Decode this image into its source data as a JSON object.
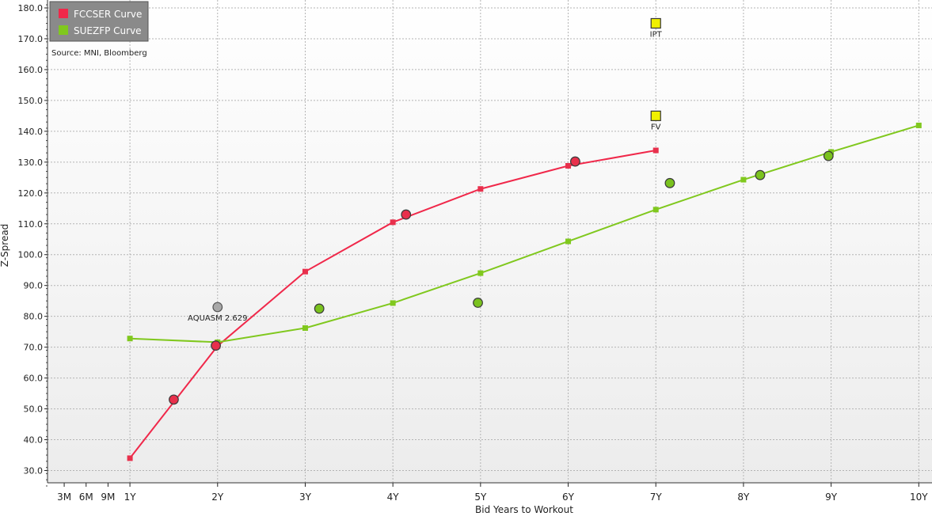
{
  "chart_data": {
    "type": "line",
    "title": "",
    "xlabel": "Bid Years to Workout",
    "ylabel": "Z-Spread",
    "source": "Source: MNI, Bloomberg",
    "grid": true,
    "legend_position": "top-left",
    "xlim": [
      0,
      10
    ],
    "ylim": [
      25,
      182
    ],
    "x_ticks": [
      {
        "x": 0.25,
        "label": "3M"
      },
      {
        "x": 0.5,
        "label": "6M"
      },
      {
        "x": 0.75,
        "label": "9M"
      },
      {
        "x": 1,
        "label": "1Y"
      },
      {
        "x": 2,
        "label": "2Y"
      },
      {
        "x": 3,
        "label": "3Y"
      },
      {
        "x": 4,
        "label": "4Y"
      },
      {
        "x": 5,
        "label": "5Y"
      },
      {
        "x": 6,
        "label": "6Y"
      },
      {
        "x": 7,
        "label": "7Y"
      },
      {
        "x": 8,
        "label": "8Y"
      },
      {
        "x": 9,
        "label": "9Y"
      },
      {
        "x": 10,
        "label": "10Y"
      }
    ],
    "y_ticks": [
      "30.0",
      "40.0",
      "50.0",
      "60.0",
      "70.0",
      "80.0",
      "90.0",
      "100.0",
      "110.0",
      "120.0",
      "130.0",
      "140.0",
      "150.0",
      "160.0",
      "170.0",
      "180.0"
    ],
    "series": [
      {
        "name": "FCCSER Curve",
        "color": "#f0284a",
        "marker_color": "#e8304c",
        "points": [
          {
            "x": 1,
            "y": 34.0
          },
          {
            "x": 2,
            "y": 70.4
          },
          {
            "x": 3,
            "y": 94.5
          },
          {
            "x": 4,
            "y": 110.5
          },
          {
            "x": 5,
            "y": 121.3
          },
          {
            "x": 6,
            "y": 128.8
          },
          {
            "x": 7,
            "y": 133.8
          }
        ]
      },
      {
        "name": "SUEZFP Curve",
        "color": "#80c81e",
        "marker_color": "#80c81e",
        "points": [
          {
            "x": 1,
            "y": 72.8
          },
          {
            "x": 2,
            "y": 71.6
          },
          {
            "x": 3,
            "y": 76.2
          },
          {
            "x": 4,
            "y": 84.3
          },
          {
            "x": 5,
            "y": 94.0
          },
          {
            "x": 6,
            "y": 104.3
          },
          {
            "x": 7,
            "y": 114.6
          },
          {
            "x": 8,
            "y": 124.3
          },
          {
            "x": 9,
            "y": 133.3
          },
          {
            "x": 10,
            "y": 141.9
          }
        ]
      }
    ],
    "bonds": [
      {
        "series": "FCCSER Curve",
        "color": "#e8304c",
        "points": [
          {
            "x": 1.5,
            "y": 53.0
          },
          {
            "x": 1.98,
            "y": 70.5
          },
          {
            "x": 4.15,
            "y": 113.0
          },
          {
            "x": 6.08,
            "y": 130.2
          }
        ]
      },
      {
        "series": "SUEZFP Curve",
        "color": "#7ac21e",
        "points": [
          {
            "x": 3.16,
            "y": 82.5
          },
          {
            "x": 4.97,
            "y": 84.4
          },
          {
            "x": 7.16,
            "y": 123.2
          },
          {
            "x": 8.19,
            "y": 125.8
          },
          {
            "x": 8.97,
            "y": 132.0
          }
        ]
      }
    ],
    "annotations": [
      {
        "label": "AQUASM 2.629",
        "x": 2.0,
        "y": 83.0,
        "color": "#a8a8a8",
        "shape": "circle"
      },
      {
        "label": "IPT",
        "x": 7.0,
        "y": 175.0,
        "color": "#f0f000",
        "shape": "square"
      },
      {
        "label": "FV",
        "x": 7.0,
        "y": 145.0,
        "color": "#f0f000",
        "shape": "square"
      }
    ],
    "legend": [
      {
        "label": "FCCSER Curve",
        "color": "#f0284a"
      },
      {
        "label": "SUEZFP Curve",
        "color": "#80c81e"
      }
    ]
  }
}
